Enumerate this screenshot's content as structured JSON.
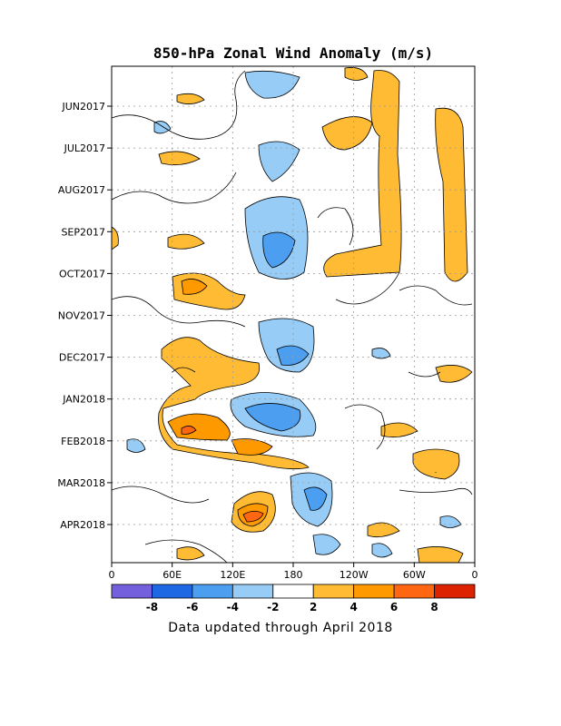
{
  "chart_data": {
    "type": "heatmap",
    "title": "850-hPa Zonal Wind Anomaly (m/s)",
    "x_tick_labels": [
      "0",
      "60E",
      "120E",
      "180",
      "120W",
      "60W",
      "0"
    ],
    "y_tick_labels": [
      "JUN2017",
      "JUL2017",
      "AUG2017",
      "SEP2017",
      "OCT2017",
      "NOV2017",
      "DEC2017",
      "JAN2018",
      "FEB2018",
      "MAR2018",
      "APR2018"
    ],
    "colorbar": {
      "tick_labels": [
        "-8",
        "-6",
        "-4",
        "-2",
        "2",
        "4",
        "6",
        "8"
      ],
      "colors": [
        "#7460dc",
        "#1f68e4",
        "#4c9ef0",
        "#96ccf6",
        "#ffffff",
        "#ffbb33",
        "#ff9900",
        "#ff6611",
        "#dd2200"
      ]
    },
    "grid": true
  },
  "footer": "Data updated through April 2018"
}
